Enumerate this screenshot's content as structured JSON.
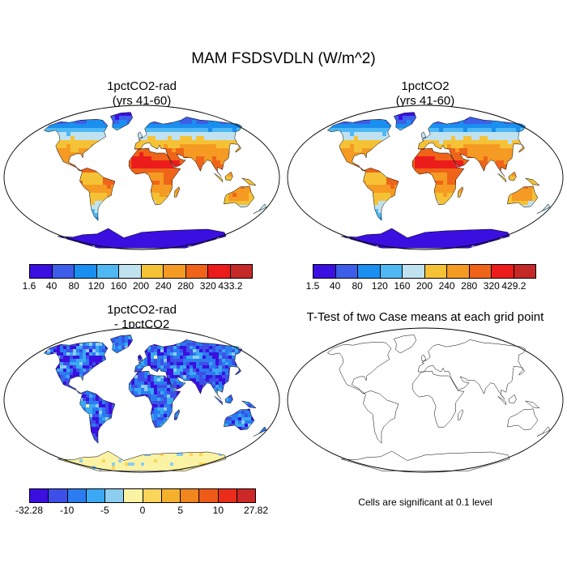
{
  "figure": {
    "title": "MAM FSDSVDLN (W/m^2)"
  },
  "panels": [
    {
      "title_line1": "1pctCO2-rad",
      "title_line2": "(yrs 41-60)",
      "colorbar": {
        "labels": [
          "1.6",
          "40",
          "80",
          "120",
          "160",
          "200",
          "240",
          "280",
          "320",
          "433.2"
        ],
        "colors": [
          "#3a0fe0",
          "#3d5ee8",
          "#1a8ff0",
          "#4fb8f2",
          "#c0e2f0",
          "#f5c236",
          "#f59a22",
          "#ef6418",
          "#ec1c1c",
          "#c42828"
        ]
      }
    },
    {
      "title_line1": "1pctCO2",
      "title_line2": "(yrs 41-60)",
      "colorbar": {
        "labels": [
          "1.5",
          "40",
          "80",
          "120",
          "160",
          "200",
          "240",
          "280",
          "320",
          "429.2"
        ],
        "colors": [
          "#3a0fe0",
          "#3d5ee8",
          "#1a8ff0",
          "#4fb8f2",
          "#c0e2f0",
          "#f5c236",
          "#f59a22",
          "#ef6418",
          "#ec1c1c",
          "#c42828"
        ]
      }
    },
    {
      "title_line1": "1pctCO2-rad",
      "title_line2": "- 1pctCO2",
      "colorbar": {
        "labels": [
          "-32.28",
          "-10",
          "-5",
          "0",
          "5",
          "10",
          "27.82"
        ],
        "colors": [
          "#3a0fe0",
          "#3d4fe8",
          "#2a7cf0",
          "#3aa8f2",
          "#8ccdf0",
          "#fbf3a4",
          "#fad55a",
          "#f5b12e",
          "#f2861e",
          "#ee5a18",
          "#ea2c1a",
          "#cc2828"
        ]
      }
    },
    {
      "title_line1": "T-Test of two Case means at each grid point",
      "note": "Cells are significant at 0.1 level",
      "significant_color": "#ff0000"
    }
  ]
}
